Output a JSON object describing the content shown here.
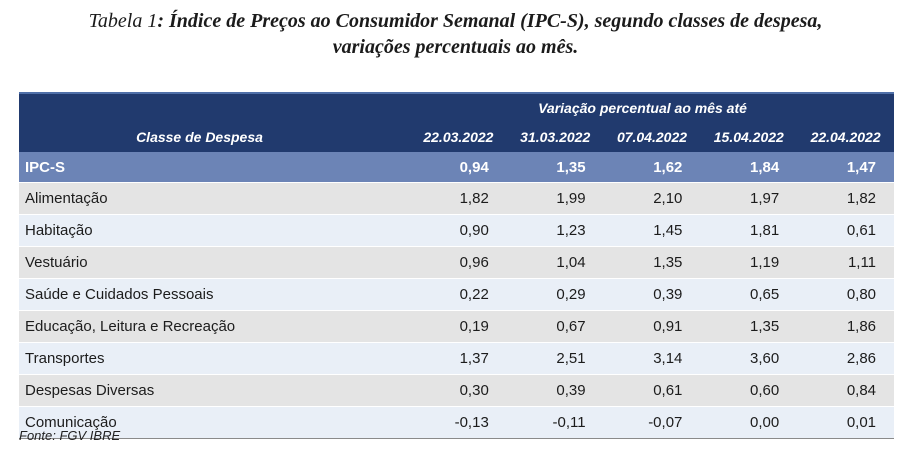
{
  "title": {
    "prefix": "Tabela 1",
    "line1": ": Índice de Preços ao Consumidor Semanal (IPC-S), segundo classes de despesa,",
    "line2": "variações percentuais ao mês."
  },
  "table": {
    "span_header": "Variação percentual ao mês até",
    "class_header": "Classe de Despesa",
    "columns": [
      "22.03.2022",
      "31.03.2022",
      "07.04.2022",
      "15.04.2022",
      "22.04.2022"
    ],
    "rows": [
      {
        "label": "IPC-S",
        "values": [
          "0,94",
          "1,35",
          "1,62",
          "1,84",
          "1,47"
        ]
      },
      {
        "label": "Alimentação",
        "values": [
          "1,82",
          "1,99",
          "2,10",
          "1,97",
          "1,82"
        ]
      },
      {
        "label": "Habitação",
        "values": [
          "0,90",
          "1,23",
          "1,45",
          "1,81",
          "0,61"
        ]
      },
      {
        "label": "Vestuário",
        "values": [
          "0,96",
          "1,04",
          "1,35",
          "1,19",
          "1,11"
        ]
      },
      {
        "label": "Saúde e Cuidados Pessoais",
        "values": [
          "0,22",
          "0,29",
          "0,39",
          "0,65",
          "0,80"
        ]
      },
      {
        "label": "Educação, Leitura e Recreação",
        "values": [
          "0,19",
          "0,67",
          "0,91",
          "1,35",
          "1,86"
        ]
      },
      {
        "label": "Transportes",
        "values": [
          "1,37",
          "2,51",
          "3,14",
          "3,60",
          "2,86"
        ]
      },
      {
        "label": "Despesas Diversas",
        "values": [
          "0,30",
          "0,39",
          "0,61",
          "0,60",
          "0,84"
        ]
      },
      {
        "label": "Comunicação",
        "values": [
          "-0,13",
          "-0,11",
          "-0,07",
          "0,00",
          "0,01"
        ]
      }
    ]
  },
  "source": "Fonte: FGV IBRE",
  "colors": {
    "header_bg": "#213a6e",
    "highlight_row_bg": "#6c84b6",
    "row_grey": "#e4e4e4",
    "row_light": "#e9eff7"
  }
}
